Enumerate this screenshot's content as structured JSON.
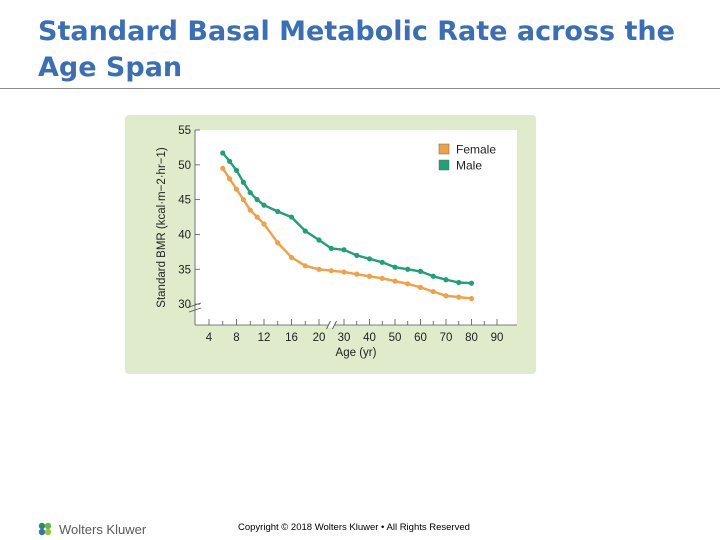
{
  "slide": {
    "title": "Standard Basal Metabolic Rate across the Age Span"
  },
  "footer": {
    "logo_text": "Wolters Kluwer",
    "logo_icon": "wolters-kluwer-logo-mark",
    "copyright": "Copyright © 2018 Wolters Kluwer • All Rights Reserved"
  },
  "colors": {
    "title": "#3a6fb5",
    "panel": "#dfebca",
    "female": "#f0a045",
    "male": "#1fa07a"
  },
  "chart_data": {
    "type": "line",
    "title": "",
    "xlabel": "Age (yr)",
    "ylabel": "Standard BMR (kcal·m−2·hr−1)",
    "ylim": [
      27,
      55
    ],
    "yticks": [
      30,
      35,
      40,
      45,
      50,
      55
    ],
    "x_break": "between 20 and 30 (scale changes from 2-yr to 10-yr steps)",
    "y_break": "below 30",
    "xticks": [
      4,
      8,
      12,
      16,
      20,
      30,
      40,
      50,
      60,
      70,
      80,
      90
    ],
    "grid": false,
    "legend": "top-right",
    "series": [
      {
        "name": "Female",
        "x": [
          6,
          7,
          8,
          9,
          10,
          11,
          12,
          14,
          16,
          18,
          20,
          25,
          30,
          35,
          40,
          45,
          50,
          55,
          60,
          65,
          70,
          75,
          80
        ],
        "values": [
          49.5,
          48.0,
          46.5,
          45.0,
          43.5,
          42.5,
          41.5,
          38.8,
          36.7,
          35.5,
          35.0,
          34.8,
          34.6,
          34.3,
          34.0,
          33.7,
          33.3,
          32.9,
          32.4,
          31.8,
          31.2,
          31.0,
          30.8
        ]
      },
      {
        "name": "Male",
        "x": [
          6,
          7,
          8,
          9,
          10,
          11,
          12,
          14,
          16,
          18,
          20,
          25,
          30,
          35,
          40,
          45,
          50,
          55,
          60,
          65,
          70,
          75,
          80
        ],
        "values": [
          51.7,
          50.5,
          49.2,
          47.5,
          46.0,
          45.0,
          44.2,
          43.3,
          42.5,
          40.5,
          39.2,
          38.0,
          37.8,
          37.0,
          36.5,
          36.0,
          35.3,
          35.0,
          34.7,
          34.0,
          33.5,
          33.1,
          33.0
        ]
      }
    ]
  }
}
